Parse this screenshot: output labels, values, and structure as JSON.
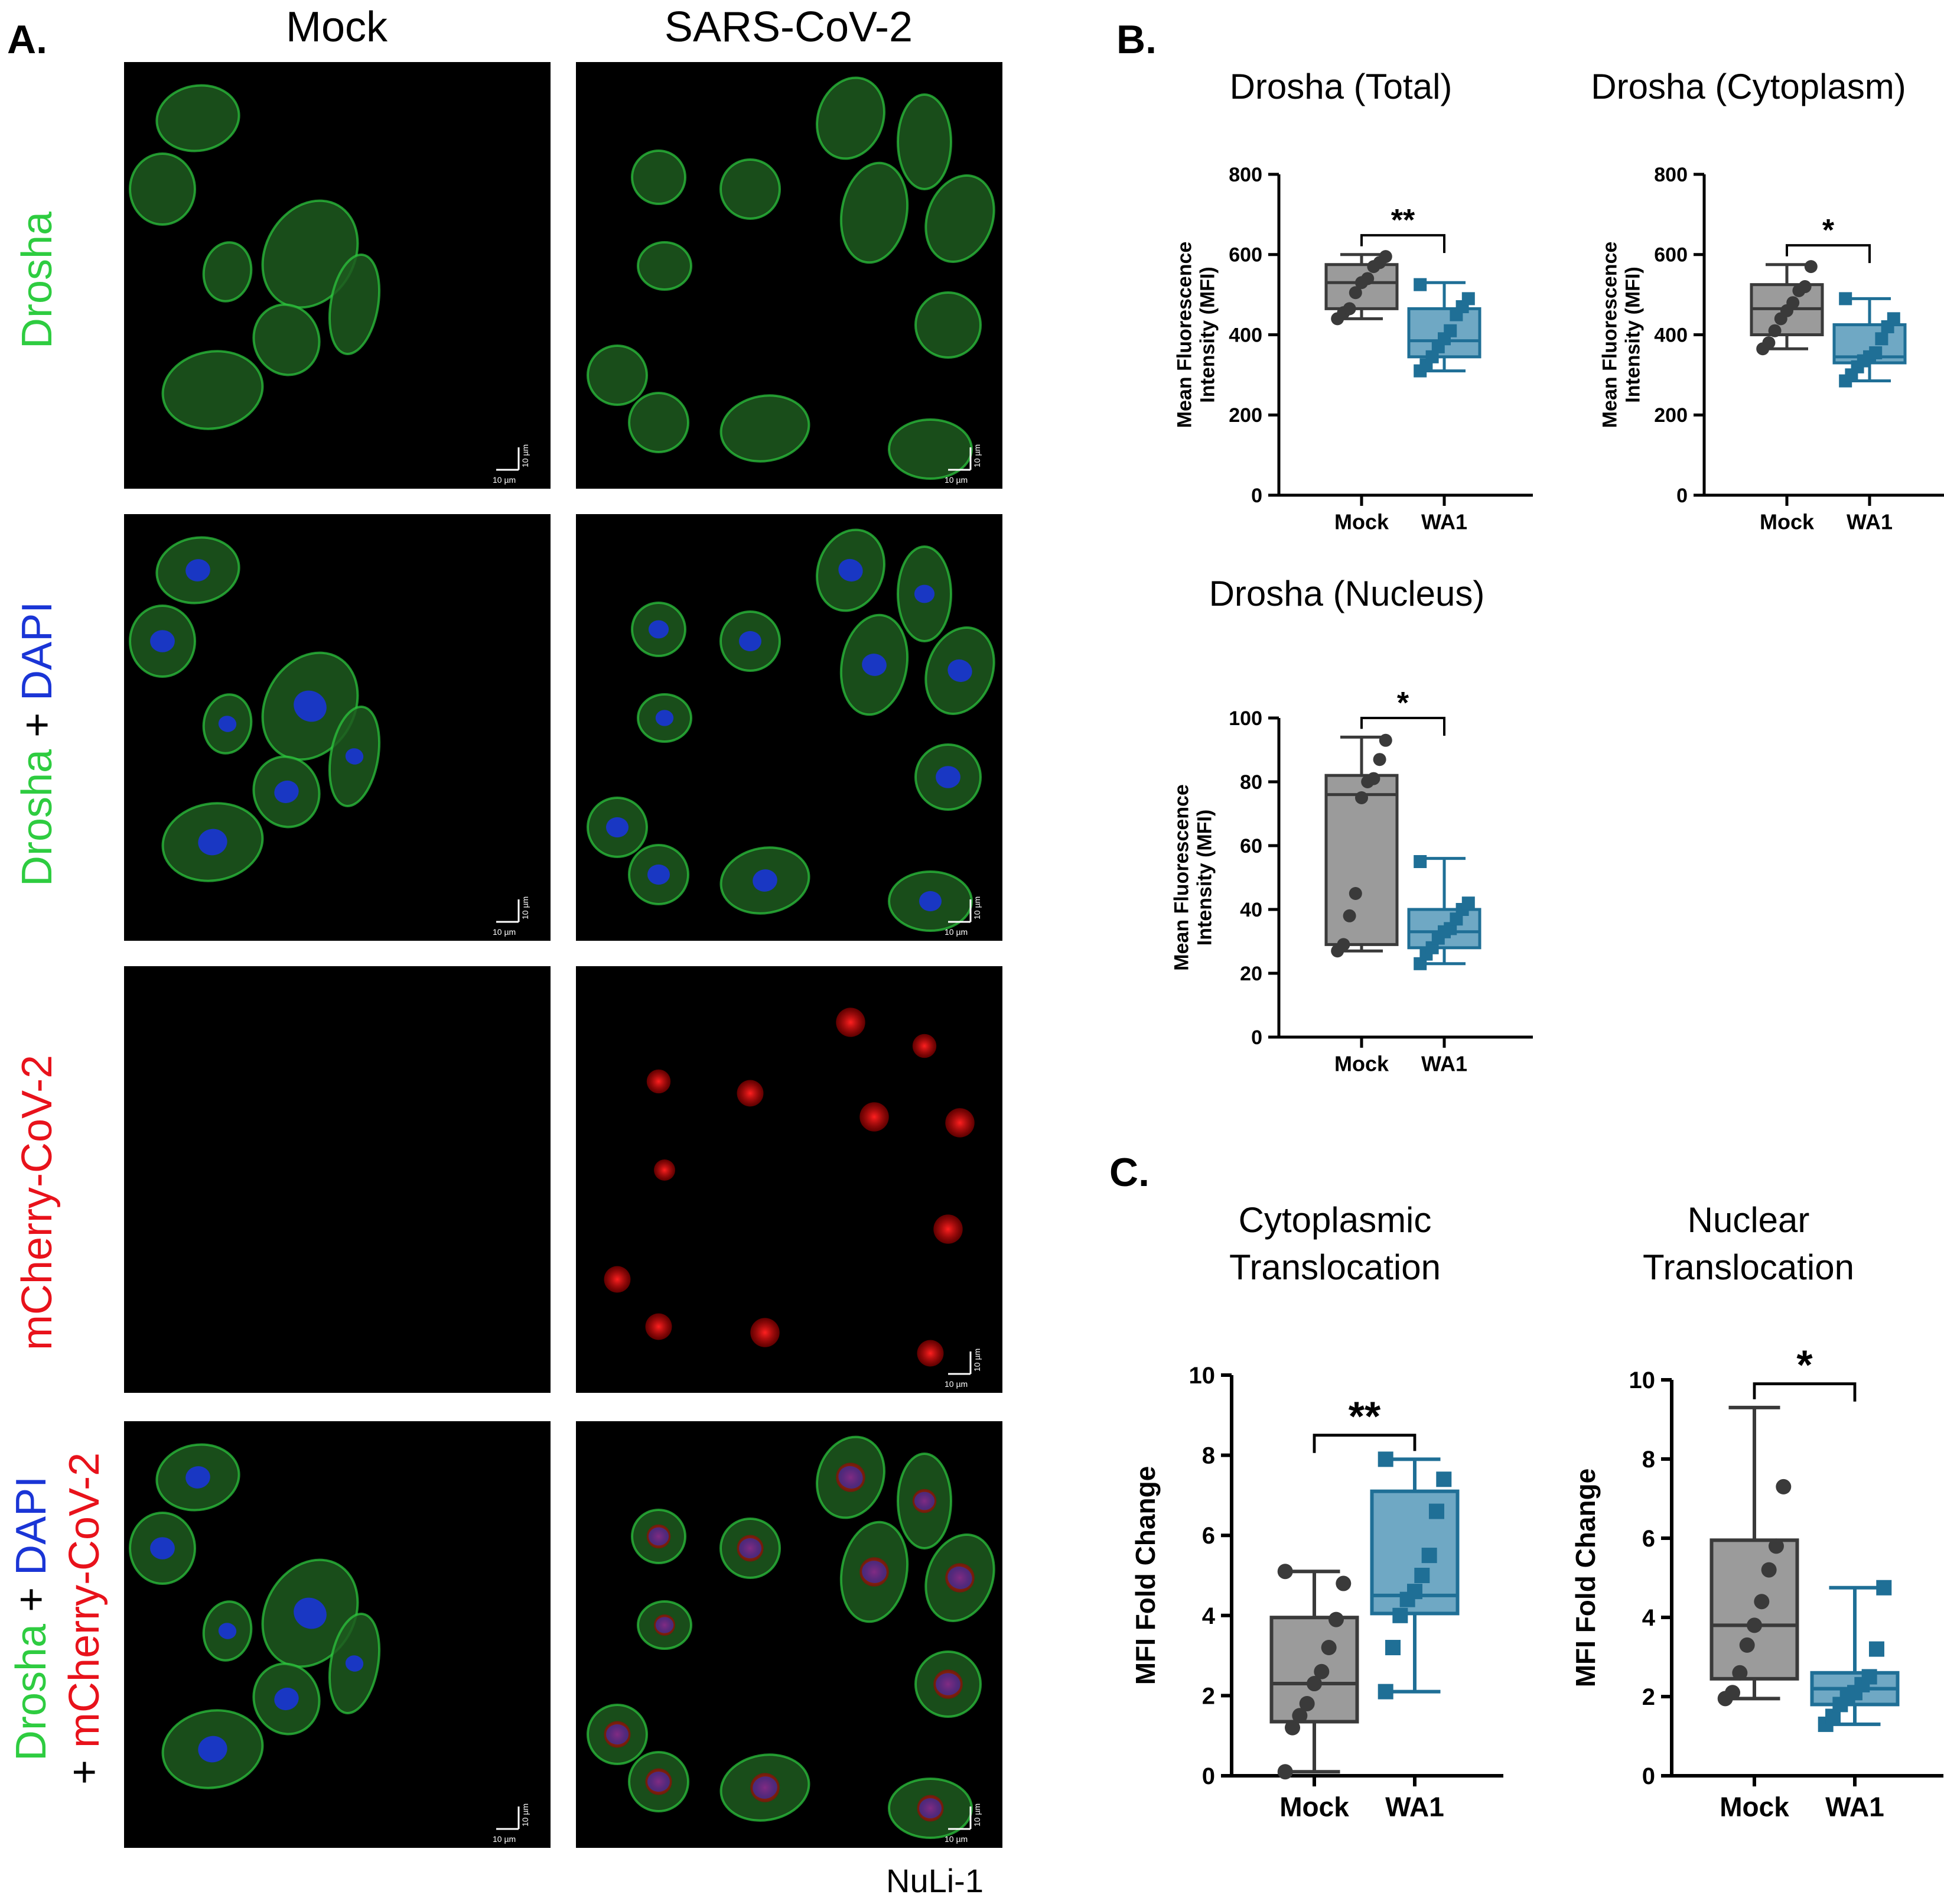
{
  "panel_a": {
    "letter": "A.",
    "columns": [
      "Mock",
      "SARS-CoV-2"
    ],
    "row_labels": [
      {
        "parts": [
          {
            "text": "Drosha",
            "color": "#2ecc40"
          }
        ]
      },
      {
        "parts": [
          {
            "text": "Drosha",
            "color": "#2ecc40"
          },
          {
            "text": " + ",
            "color": "#000000"
          },
          {
            "text": "DAPI",
            "color": "#1a35d6"
          }
        ]
      },
      {
        "parts": [
          {
            "text": "mCherry-CoV-2",
            "color": "#e8121b"
          }
        ]
      },
      {
        "line1": [
          {
            "text": "Drosha",
            "color": "#2ecc40"
          },
          {
            "text": " + ",
            "color": "#000000"
          },
          {
            "text": "DAPI",
            "color": "#1a35d6"
          }
        ],
        "line2": [
          {
            "text": "+ ",
            "color": "#000000"
          },
          {
            "text": "mCherry-CoV-2",
            "color": "#e8121b"
          }
        ]
      }
    ],
    "scale_bar_label": "10 µm",
    "cell_line": "NuLi-1"
  },
  "panel_b": {
    "letter": "B."
  },
  "panel_c": {
    "letter": "C."
  },
  "colors": {
    "mock_fill": "#9b9b9b",
    "mock_dark": "#3a3a3a",
    "wa1_fill": "#6fa8c4",
    "wa1_dark": "#1f6f96",
    "drosha_green": "#2ecc40",
    "dapi_blue": "#1a35d6",
    "mcherry_red": "#e8121b"
  },
  "chart_data": [
    {
      "type": "box",
      "title": "Drosha (Total)",
      "ylabel": "Mean Fluorescence Intensity (MFI)",
      "categories": [
        "Mock",
        "WA1"
      ],
      "ylim": [
        0,
        800
      ],
      "yticks": [
        0,
        200,
        400,
        600,
        800
      ],
      "significance": "**",
      "series": [
        {
          "name": "Mock",
          "min": 440,
          "q1": 465,
          "median": 530,
          "q3": 575,
          "max": 600,
          "points": [
            440,
            455,
            465,
            505,
            530,
            540,
            570,
            580,
            595
          ]
        },
        {
          "name": "WA1",
          "min": 310,
          "q1": 345,
          "median": 385,
          "q3": 465,
          "max": 530,
          "points": [
            310,
            325,
            345,
            370,
            390,
            410,
            450,
            470,
            490,
            525
          ]
        }
      ]
    },
    {
      "type": "box",
      "title": "Drosha (Cytoplasm)",
      "ylabel": "Mean Fluorescence Intensity (MFI)",
      "categories": [
        "Mock",
        "WA1"
      ],
      "ylim": [
        0,
        800
      ],
      "yticks": [
        0,
        200,
        400,
        600,
        800
      ],
      "significance": "*",
      "series": [
        {
          "name": "Mock",
          "min": 365,
          "q1": 400,
          "median": 465,
          "q3": 525,
          "max": 575,
          "points": [
            365,
            380,
            410,
            440,
            460,
            480,
            510,
            520,
            570
          ]
        },
        {
          "name": "WA1",
          "min": 285,
          "q1": 330,
          "median": 345,
          "q3": 425,
          "max": 490,
          "points": [
            285,
            300,
            320,
            335,
            345,
            355,
            390,
            420,
            440,
            490
          ]
        }
      ]
    },
    {
      "type": "box",
      "title": "Drosha (Nucleus)",
      "ylabel": "Mean Fluorescence Intensity (MFI)",
      "categories": [
        "Mock",
        "WA1"
      ],
      "ylim": [
        0,
        100
      ],
      "yticks": [
        0,
        20,
        40,
        60,
        80,
        100
      ],
      "significance": "*",
      "series": [
        {
          "name": "Mock",
          "min": 27,
          "q1": 29,
          "median": 76,
          "q3": 82,
          "max": 94,
          "points": [
            27,
            29,
            38,
            45,
            75,
            80,
            81,
            87,
            93
          ]
        },
        {
          "name": "WA1",
          "min": 23,
          "q1": 28,
          "median": 33,
          "q3": 40,
          "max": 56,
          "points": [
            23,
            26,
            28,
            31,
            33,
            34,
            37,
            40,
            42,
            55
          ]
        }
      ]
    },
    {
      "type": "box",
      "title": "Cytoplasmic\nTranslocation",
      "ylabel": "MFI Fold Change",
      "categories": [
        "Mock",
        "WA1"
      ],
      "ylim": [
        0,
        10
      ],
      "yticks": [
        0,
        2,
        4,
        6,
        8,
        10
      ],
      "significance": "**",
      "series": [
        {
          "name": "Mock",
          "min": 0.1,
          "q1": 1.35,
          "median": 2.3,
          "q3": 3.95,
          "max": 5.1,
          "points": [
            0.1,
            1.2,
            1.5,
            1.8,
            2.3,
            2.6,
            3.2,
            3.9,
            4.8,
            5.1
          ]
        },
        {
          "name": "WA1",
          "min": 2.1,
          "q1": 4.05,
          "median": 4.5,
          "q3": 7.1,
          "max": 7.9,
          "points": [
            2.1,
            3.2,
            4.0,
            4.4,
            4.6,
            5.0,
            5.5,
            6.6,
            7.4,
            7.9
          ]
        }
      ]
    },
    {
      "type": "box",
      "title": "Nuclear\nTranslocation",
      "ylabel": "MFI Fold Change",
      "categories": [
        "Mock",
        "WA1"
      ],
      "ylim": [
        0,
        10
      ],
      "yticks": [
        0,
        2,
        4,
        6,
        8,
        10
      ],
      "significance": "*",
      "series": [
        {
          "name": "Mock",
          "min": 1.95,
          "q1": 2.45,
          "median": 3.8,
          "q3": 5.95,
          "max": 9.3,
          "points": [
            1.95,
            2.1,
            2.6,
            3.3,
            3.8,
            4.4,
            5.2,
            5.8,
            7.3
          ]
        },
        {
          "name": "WA1",
          "min": 1.3,
          "q1": 1.8,
          "median": 2.2,
          "q3": 2.6,
          "max": 4.75,
          "points": [
            1.3,
            1.5,
            1.8,
            2.0,
            2.1,
            2.3,
            2.5,
            3.2,
            4.75
          ]
        }
      ]
    }
  ]
}
